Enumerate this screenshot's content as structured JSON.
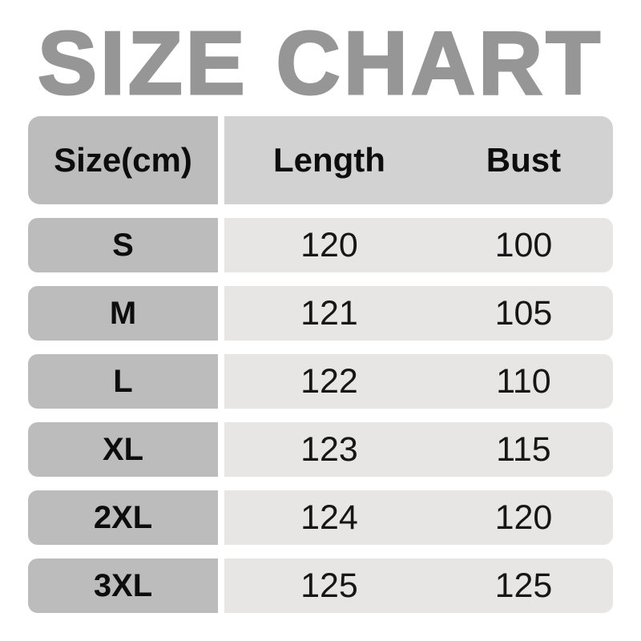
{
  "title": "SIZE CHART",
  "header": {
    "size": "Size(cm)",
    "length": "Length",
    "bust": "Bust"
  },
  "rows": [
    {
      "size": "S",
      "length": "120",
      "bust": "100"
    },
    {
      "size": "M",
      "length": "121",
      "bust": "105"
    },
    {
      "size": "L",
      "length": "122",
      "bust": "110"
    },
    {
      "size": "XL",
      "length": "123",
      "bust": "115"
    },
    {
      "size": "2XL",
      "length": "124",
      "bust": "120"
    },
    {
      "size": "3XL",
      "length": "125",
      "bust": "125"
    }
  ],
  "colors": {
    "title_text": "#969696",
    "label_column_bg": "#bcbcbc",
    "header_values_bg": "#d2d2d2",
    "row_values_bg": "#e7e6e5",
    "cell_text": "#0d0d0d",
    "background": "#ffffff"
  },
  "chart_data": {
    "type": "table",
    "title": "SIZE CHART",
    "unit": "cm",
    "columns": [
      "Size(cm)",
      "Length",
      "Bust"
    ],
    "rows": [
      [
        "S",
        120,
        100
      ],
      [
        "M",
        121,
        105
      ],
      [
        "L",
        122,
        110
      ],
      [
        "XL",
        123,
        115
      ],
      [
        "2XL",
        124,
        120
      ],
      [
        "3XL",
        125,
        125
      ]
    ]
  }
}
